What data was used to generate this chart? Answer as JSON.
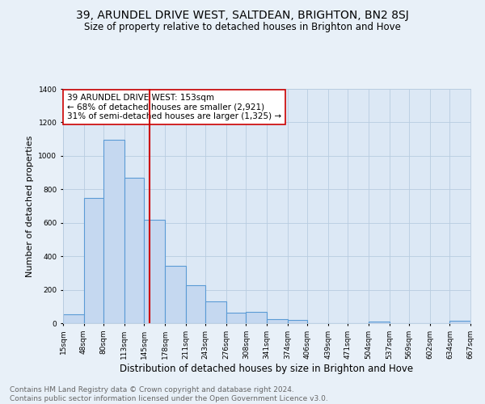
{
  "title": "39, ARUNDEL DRIVE WEST, SALTDEAN, BRIGHTON, BN2 8SJ",
  "subtitle": "Size of property relative to detached houses in Brighton and Hove",
  "xlabel": "Distribution of detached houses by size in Brighton and Hove",
  "ylabel": "Number of detached properties",
  "footer_line1": "Contains HM Land Registry data © Crown copyright and database right 2024.",
  "footer_line2": "Contains public sector information licensed under the Open Government Licence v3.0.",
  "annotation_line1": "39 ARUNDEL DRIVE WEST: 153sqm",
  "annotation_line2": "← 68% of detached houses are smaller (2,921)",
  "annotation_line3": "31% of semi-detached houses are larger (1,325) →",
  "bar_edges": [
    15,
    48,
    80,
    113,
    145,
    178,
    211,
    243,
    276,
    308,
    341,
    374,
    406,
    439,
    471,
    504,
    537,
    569,
    602,
    634,
    667
  ],
  "bar_heights": [
    55,
    750,
    1095,
    870,
    620,
    345,
    225,
    130,
    65,
    70,
    25,
    20,
    0,
    0,
    0,
    10,
    0,
    0,
    0,
    15
  ],
  "bar_color": "#c5d8f0",
  "bar_edge_color": "#5b9bd5",
  "bar_linewidth": 0.8,
  "vline_x": 153,
  "vline_color": "#cc0000",
  "vline_linewidth": 1.5,
  "ylim": [
    0,
    1400
  ],
  "yticks": [
    0,
    200,
    400,
    600,
    800,
    1000,
    1200,
    1400
  ],
  "background_color": "#e8f0f8",
  "plot_bg_color": "#dce8f5",
  "grid_color": "#b8cce0",
  "annotation_box_color": "#ffffff",
  "annotation_box_edge": "#cc0000",
  "title_fontsize": 10,
  "subtitle_fontsize": 8.5,
  "xlabel_fontsize": 8.5,
  "ylabel_fontsize": 8,
  "tick_fontsize": 6.5,
  "annotation_fontsize": 7.5,
  "footer_fontsize": 6.5
}
